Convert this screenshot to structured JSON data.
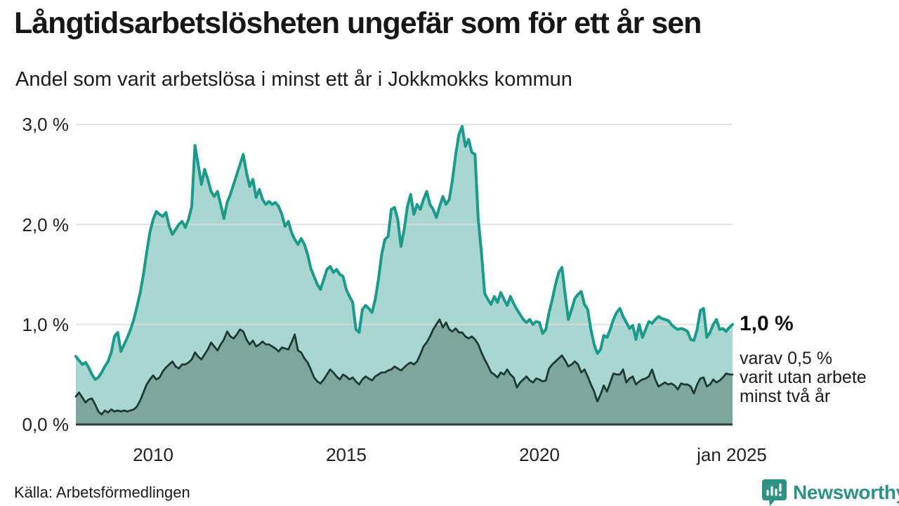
{
  "header": {
    "title": "Långtidsarbetslösheten ungefär som för ett år sen",
    "subtitle": "Andel som varit arbetslösa i minst ett år i Jokkmokks kommun"
  },
  "chart_data": {
    "type": "area",
    "title": "Långtidsarbetslösheten ungefär som för ett år sen",
    "subtitle": "Andel som varit arbetslösa i minst ett år i Jokkmokks kommun",
    "unit": "%",
    "x_frequency": "monthly",
    "x_range": [
      "2008-01",
      "2025-01"
    ],
    "ylim": [
      0,
      3.2
    ],
    "grid": "horizontal",
    "legend_position": "none",
    "yticks": [
      {
        "label": "3,0 %",
        "value": 3.0
      },
      {
        "label": "2,0 %",
        "value": 2.0
      },
      {
        "label": "1,0 %",
        "value": 1.0
      },
      {
        "label": "0,0 %",
        "value": 0.0
      }
    ],
    "xticks": [
      {
        "label": "2010",
        "month_index": 24
      },
      {
        "label": "2015",
        "month_index": 84
      },
      {
        "label": "2020",
        "month_index": 144
      },
      {
        "label": "jan 2025",
        "month_index": 204
      }
    ],
    "series": [
      {
        "name": "Andel som varit arbetslösa i minst ett år",
        "line_color": "#1b998b",
        "fill_color": "#a7d7d0",
        "end_value": 1.0,
        "values": [
          0.68,
          0.64,
          0.6,
          0.62,
          0.57,
          0.5,
          0.45,
          0.47,
          0.52,
          0.58,
          0.63,
          0.72,
          0.88,
          0.92,
          0.73,
          0.8,
          0.87,
          0.95,
          1.05,
          1.18,
          1.32,
          1.5,
          1.72,
          1.92,
          2.05,
          2.13,
          2.1,
          2.08,
          2.12,
          1.98,
          1.9,
          1.95,
          2.0,
          2.03,
          1.97,
          2.05,
          2.18,
          2.79,
          2.6,
          2.4,
          2.55,
          2.45,
          2.33,
          2.28,
          2.33,
          2.2,
          2.06,
          2.22,
          2.3,
          2.4,
          2.5,
          2.6,
          2.7,
          2.52,
          2.38,
          2.45,
          2.27,
          2.35,
          2.25,
          2.2,
          2.23,
          2.2,
          2.22,
          2.18,
          2.1,
          1.98,
          2.03,
          1.92,
          1.85,
          1.8,
          1.86,
          1.8,
          1.7,
          1.56,
          1.48,
          1.4,
          1.35,
          1.45,
          1.55,
          1.58,
          1.52,
          1.55,
          1.5,
          1.48,
          1.35,
          1.28,
          1.22,
          0.95,
          0.92,
          1.15,
          1.19,
          1.16,
          1.12,
          1.25,
          1.45,
          1.7,
          1.85,
          1.88,
          2.15,
          2.17,
          2.05,
          1.78,
          1.95,
          2.18,
          2.3,
          2.1,
          2.2,
          2.15,
          2.25,
          2.33,
          2.2,
          2.15,
          2.07,
          2.18,
          2.28,
          2.2,
          2.25,
          2.45,
          2.7,
          2.9,
          2.98,
          2.78,
          2.85,
          2.72,
          2.7,
          2.05,
          1.72,
          1.31,
          1.25,
          1.2,
          1.28,
          1.22,
          1.32,
          1.25,
          1.19,
          1.28,
          1.21,
          1.15,
          1.1,
          1.05,
          1.02,
          1.05,
          1.0,
          1.03,
          1.02,
          0.91,
          0.95,
          1.12,
          1.25,
          1.4,
          1.52,
          1.57,
          1.3,
          1.05,
          1.15,
          1.26,
          1.3,
          1.33,
          1.2,
          1.15,
          0.95,
          0.8,
          0.71,
          0.75,
          0.89,
          0.87,
          0.95,
          1.05,
          1.12,
          1.16,
          1.08,
          1.02,
          0.96,
          0.99,
          0.85,
          1.0,
          0.87,
          0.95,
          1.03,
          1.01,
          1.05,
          1.08,
          1.06,
          1.05,
          1.04,
          1.0,
          0.97,
          0.95,
          0.96,
          0.95,
          0.93,
          0.85,
          0.84,
          0.95,
          1.14,
          1.16,
          0.87,
          0.92,
          1.0,
          1.05,
          0.95,
          0.96,
          0.93,
          0.97,
          1.0
        ]
      },
      {
        "name": "varav arbetslösa i minst två år",
        "line_color": "#203832",
        "fill_color": "#7da69c",
        "end_value": 0.5,
        "values": [
          0.28,
          0.32,
          0.27,
          0.22,
          0.25,
          0.26,
          0.2,
          0.13,
          0.1,
          0.14,
          0.12,
          0.15,
          0.13,
          0.14,
          0.13,
          0.14,
          0.13,
          0.14,
          0.15,
          0.18,
          0.24,
          0.32,
          0.4,
          0.45,
          0.49,
          0.45,
          0.47,
          0.53,
          0.57,
          0.6,
          0.63,
          0.58,
          0.56,
          0.6,
          0.6,
          0.62,
          0.65,
          0.72,
          0.68,
          0.65,
          0.7,
          0.75,
          0.82,
          0.78,
          0.74,
          0.8,
          0.85,
          0.93,
          0.88,
          0.86,
          0.9,
          0.95,
          0.93,
          0.85,
          0.8,
          0.84,
          0.78,
          0.8,
          0.83,
          0.8,
          0.8,
          0.78,
          0.76,
          0.73,
          0.77,
          0.76,
          0.75,
          0.82,
          0.9,
          0.74,
          0.72,
          0.66,
          0.62,
          0.55,
          0.47,
          0.43,
          0.41,
          0.45,
          0.5,
          0.55,
          0.52,
          0.48,
          0.45,
          0.5,
          0.48,
          0.45,
          0.47,
          0.43,
          0.4,
          0.45,
          0.48,
          0.46,
          0.44,
          0.48,
          0.5,
          0.52,
          0.52,
          0.54,
          0.55,
          0.58,
          0.56,
          0.54,
          0.57,
          0.6,
          0.62,
          0.6,
          0.63,
          0.7,
          0.78,
          0.82,
          0.88,
          0.95,
          1.0,
          1.05,
          0.97,
          1.02,
          0.95,
          0.93,
          0.96,
          0.92,
          0.92,
          0.88,
          0.86,
          0.88,
          0.85,
          0.8,
          0.72,
          0.65,
          0.59,
          0.52,
          0.5,
          0.47,
          0.52,
          0.5,
          0.55,
          0.5,
          0.47,
          0.37,
          0.42,
          0.45,
          0.48,
          0.44,
          0.42,
          0.46,
          0.45,
          0.43,
          0.44,
          0.56,
          0.6,
          0.63,
          0.66,
          0.69,
          0.64,
          0.58,
          0.6,
          0.63,
          0.6,
          0.52,
          0.55,
          0.48,
          0.4,
          0.33,
          0.23,
          0.3,
          0.39,
          0.33,
          0.42,
          0.51,
          0.5,
          0.5,
          0.55,
          0.42,
          0.46,
          0.48,
          0.4,
          0.43,
          0.45,
          0.46,
          0.48,
          0.55,
          0.45,
          0.38,
          0.4,
          0.42,
          0.4,
          0.41,
          0.39,
          0.35,
          0.41,
          0.4,
          0.4,
          0.38,
          0.31,
          0.4,
          0.46,
          0.47,
          0.38,
          0.4,
          0.45,
          0.42,
          0.44,
          0.47,
          0.51,
          0.5,
          0.5
        ]
      }
    ],
    "end_labels": {
      "primary": "1,0 %",
      "secondary": "varav 0,5 %\nvarit utan arbete\nminst två år"
    },
    "colors": {
      "gridline": "#dcdcdc",
      "baseline": "#2b3b35",
      "accent_teal": "#1b998b",
      "dark_green": "#203832"
    }
  },
  "footer": {
    "source": "Källa: Arbetsförmedlingen",
    "brand": "Newsworthy"
  }
}
